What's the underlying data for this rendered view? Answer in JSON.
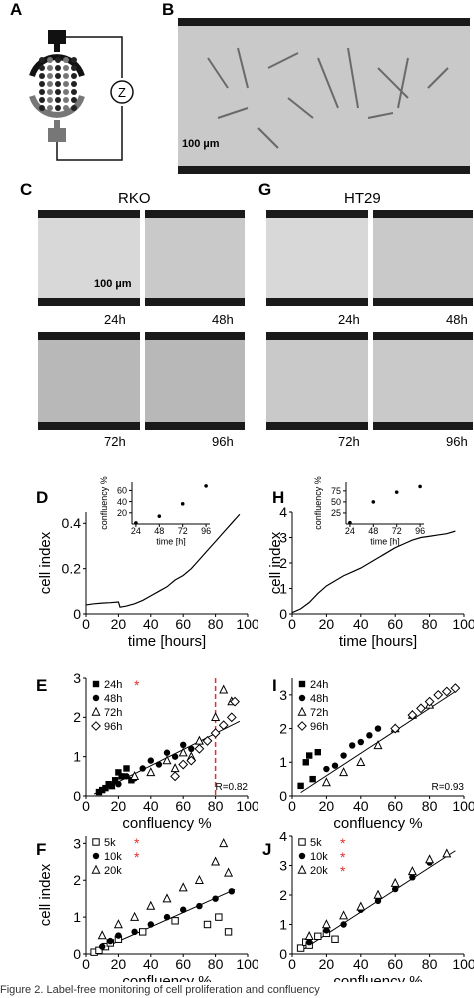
{
  "panels": {
    "A": "A",
    "B": "B",
    "C": "C",
    "G": "G",
    "D": "D",
    "H": "H",
    "E": "E",
    "I": "I",
    "F": "F",
    "J": "J"
  },
  "panel_a": {
    "impedance_symbol": "Z"
  },
  "panel_b": {
    "scalebar": "100 µm"
  },
  "panel_c": {
    "cell_line": "RKO",
    "scalebar": "100 µm",
    "times": [
      "24h",
      "48h",
      "72h",
      "96h"
    ]
  },
  "panel_g": {
    "cell_line": "HT29",
    "times": [
      "24h",
      "48h",
      "72h",
      "96h"
    ]
  },
  "caption_fragment": "Figure 2. Label-free monitoring of cell proliferation and confluency",
  "colors": {
    "red_line": "#e03030",
    "asterisk": "#e03030"
  },
  "chart_data": [
    {
      "id": "D-inset",
      "type": "scatter",
      "ylabel": "confluency %",
      "xlabel": "time [h]",
      "xticks": [
        24,
        48,
        72,
        96
      ],
      "yticks": [
        20,
        40,
        60
      ],
      "xlim": [
        20,
        100
      ],
      "ylim": [
        0,
        75
      ],
      "x": [
        24,
        48,
        72,
        96
      ],
      "y": [
        2,
        14,
        36,
        68
      ]
    },
    {
      "id": "D",
      "type": "line",
      "ylabel": "cell index",
      "xlabel": "time [hours]",
      "xticks": [
        0,
        20,
        40,
        60,
        80,
        100
      ],
      "yticks": [
        0,
        0.2,
        0.4
      ],
      "xlim": [
        0,
        100
      ],
      "ylim": [
        0,
        0.45
      ],
      "x": [
        0,
        5,
        10,
        15,
        20,
        21,
        25,
        30,
        35,
        40,
        45,
        50,
        55,
        60,
        65,
        70,
        75,
        80,
        85,
        90,
        95
      ],
      "y": [
        0.04,
        0.045,
        0.048,
        0.05,
        0.053,
        0.03,
        0.035,
        0.045,
        0.06,
        0.08,
        0.1,
        0.12,
        0.15,
        0.17,
        0.2,
        0.24,
        0.28,
        0.32,
        0.36,
        0.4,
        0.44
      ]
    },
    {
      "id": "H-inset",
      "type": "scatter",
      "ylabel": "confluency %",
      "xlabel": "time [h]",
      "xticks": [
        24,
        48,
        72,
        96
      ],
      "yticks": [
        25,
        50,
        75
      ],
      "xlim": [
        20,
        100
      ],
      "ylim": [
        0,
        95
      ],
      "x": [
        24,
        48,
        72,
        96
      ],
      "y": [
        3,
        50,
        72,
        85
      ]
    },
    {
      "id": "H",
      "type": "line",
      "ylabel": "cell index",
      "xlabel": "time [hours]",
      "xticks": [
        0,
        20,
        40,
        60,
        80,
        100
      ],
      "yticks": [
        0,
        1,
        2,
        3,
        4
      ],
      "xlim": [
        0,
        100
      ],
      "ylim": [
        0,
        4
      ],
      "x": [
        0,
        5,
        10,
        15,
        20,
        25,
        30,
        35,
        40,
        45,
        50,
        55,
        60,
        65,
        70,
        75,
        80,
        85,
        90,
        95
      ],
      "y": [
        0.05,
        0.2,
        0.45,
        0.8,
        1.1,
        1.3,
        1.5,
        1.65,
        1.8,
        2.0,
        2.2,
        2.4,
        2.6,
        2.75,
        2.9,
        3.0,
        3.05,
        3.1,
        3.15,
        3.25
      ]
    },
    {
      "id": "E",
      "type": "scatter",
      "ylabel": "",
      "xlabel": "confluency %",
      "xticks": [
        0,
        20,
        40,
        60,
        80,
        100
      ],
      "yticks": [
        0,
        1,
        2,
        3
      ],
      "xlim": [
        0,
        100
      ],
      "ylim": [
        0,
        3
      ],
      "legend": [
        "24h",
        "48h",
        "72h",
        "96h"
      ],
      "legend_starred": [
        true,
        false,
        false,
        false
      ],
      "annotation": "R=0.82",
      "vline_x": 80,
      "fit": {
        "x": [
          5,
          95
        ],
        "y": [
          0.05,
          1.9
        ]
      },
      "series": [
        {
          "name": "24h",
          "marker": "square",
          "x": [
            8,
            10,
            12,
            14,
            16,
            18,
            20,
            22,
            25,
            28
          ],
          "y": [
            0.1,
            0.15,
            0.2,
            0.3,
            0.25,
            0.4,
            0.6,
            0.5,
            0.7,
            0.4
          ]
        },
        {
          "name": "48h",
          "marker": "circle",
          "x": [
            20,
            25,
            30,
            35,
            40,
            45,
            50,
            55,
            60,
            65
          ],
          "y": [
            0.3,
            0.5,
            0.45,
            0.7,
            0.9,
            0.8,
            1.1,
            1.0,
            1.3,
            1.2
          ]
        },
        {
          "name": "72h",
          "marker": "triangle",
          "x": [
            30,
            40,
            50,
            55,
            60,
            65,
            70,
            80,
            85,
            90
          ],
          "y": [
            0.5,
            0.6,
            0.9,
            0.7,
            1.1,
            1.0,
            1.4,
            2.0,
            2.7,
            2.4
          ]
        },
        {
          "name": "96h",
          "marker": "diamond",
          "x": [
            55,
            60,
            65,
            70,
            75,
            80,
            85,
            90,
            92
          ],
          "y": [
            0.5,
            0.8,
            0.9,
            1.2,
            1.4,
            1.6,
            1.8,
            2.0,
            2.4
          ]
        }
      ]
    },
    {
      "id": "I",
      "type": "scatter",
      "ylabel": "",
      "xlabel": "confluency %",
      "xticks": [
        0,
        20,
        40,
        60,
        80,
        100
      ],
      "yticks": [
        0,
        1,
        2,
        3
      ],
      "xlim": [
        0,
        100
      ],
      "ylim": [
        0,
        3.5
      ],
      "legend": [
        "24h",
        "48h",
        "72h",
        "96h"
      ],
      "legend_starred": [
        false,
        false,
        false,
        false
      ],
      "annotation": "R=0.93",
      "fit": {
        "x": [
          5,
          95
        ],
        "y": [
          0.1,
          3.1
        ]
      },
      "series": [
        {
          "name": "24h",
          "marker": "square",
          "x": [
            5,
            8,
            10,
            12,
            15
          ],
          "y": [
            0.3,
            1.0,
            1.2,
            0.5,
            1.3
          ]
        },
        {
          "name": "48h",
          "marker": "circle",
          "x": [
            20,
            25,
            30,
            35,
            40,
            45,
            50
          ],
          "y": [
            0.8,
            0.9,
            1.2,
            1.5,
            1.6,
            1.8,
            2.0
          ]
        },
        {
          "name": "72h",
          "marker": "triangle",
          "x": [
            20,
            30,
            40,
            50,
            60,
            70,
            80
          ],
          "y": [
            0.4,
            0.7,
            1.0,
            1.5,
            2.0,
            2.4,
            2.7
          ]
        },
        {
          "name": "96h",
          "marker": "diamond",
          "x": [
            60,
            70,
            75,
            80,
            85,
            90,
            95
          ],
          "y": [
            2.0,
            2.4,
            2.6,
            2.8,
            3.0,
            3.1,
            3.2
          ]
        }
      ]
    },
    {
      "id": "F",
      "type": "scatter",
      "ylabel": "cell index",
      "xlabel": "confluency %",
      "xticks": [
        0,
        20,
        40,
        60,
        80,
        100
      ],
      "yticks": [
        0,
        1,
        2,
        3
      ],
      "xlim": [
        0,
        100
      ],
      "ylim": [
        0,
        3.2
      ],
      "legend": [
        "5k",
        "10k",
        "20k"
      ],
      "legend_starred": [
        true,
        true,
        false
      ],
      "fit": {
        "x": [
          5,
          92
        ],
        "y": [
          0.05,
          1.75
        ]
      },
      "series": [
        {
          "name": "5k",
          "marker": "square-open",
          "x": [
            5,
            8,
            12,
            15,
            20,
            35,
            55,
            75,
            82,
            88
          ],
          "y": [
            0.05,
            0.1,
            0.2,
            0.3,
            0.4,
            0.6,
            0.9,
            0.8,
            1.0,
            0.6
          ]
        },
        {
          "name": "10k",
          "marker": "circle",
          "x": [
            10,
            15,
            20,
            30,
            40,
            50,
            60,
            70,
            80,
            90
          ],
          "y": [
            0.2,
            0.35,
            0.5,
            0.6,
            0.8,
            1.0,
            1.2,
            1.3,
            1.5,
            1.7
          ]
        },
        {
          "name": "20k",
          "marker": "triangle",
          "x": [
            10,
            20,
            30,
            40,
            50,
            60,
            70,
            80,
            85,
            88
          ],
          "y": [
            0.5,
            0.8,
            1.0,
            1.3,
            1.5,
            1.8,
            2.0,
            2.5,
            3.0,
            2.2
          ]
        }
      ]
    },
    {
      "id": "J",
      "type": "scatter",
      "ylabel": "",
      "xlabel": "confluency %",
      "xticks": [
        0,
        20,
        40,
        60,
        80,
        100
      ],
      "yticks": [
        0,
        1,
        2,
        3,
        4
      ],
      "xlim": [
        0,
        100
      ],
      "ylim": [
        0,
        4
      ],
      "legend": [
        "5k",
        "10k",
        "20k"
      ],
      "legend_starred": [
        true,
        true,
        true
      ],
      "fit": {
        "x": [
          5,
          95
        ],
        "y": [
          0.1,
          3.5
        ]
      },
      "series": [
        {
          "name": "5k",
          "marker": "square-open",
          "x": [
            5,
            8,
            10,
            15,
            20,
            25
          ],
          "y": [
            0.2,
            0.4,
            0.3,
            0.6,
            0.7,
            0.5
          ]
        },
        {
          "name": "10k",
          "marker": "circle",
          "x": [
            10,
            20,
            30,
            40,
            50,
            60,
            70,
            80
          ],
          "y": [
            0.4,
            0.8,
            1.0,
            1.5,
            1.8,
            2.2,
            2.6,
            3.1
          ]
        },
        {
          "name": "20k",
          "marker": "triangle",
          "x": [
            10,
            20,
            30,
            40,
            50,
            60,
            70,
            80,
            90
          ],
          "y": [
            0.6,
            1.0,
            1.3,
            1.6,
            2.0,
            2.4,
            2.8,
            3.2,
            3.4
          ]
        }
      ]
    }
  ]
}
